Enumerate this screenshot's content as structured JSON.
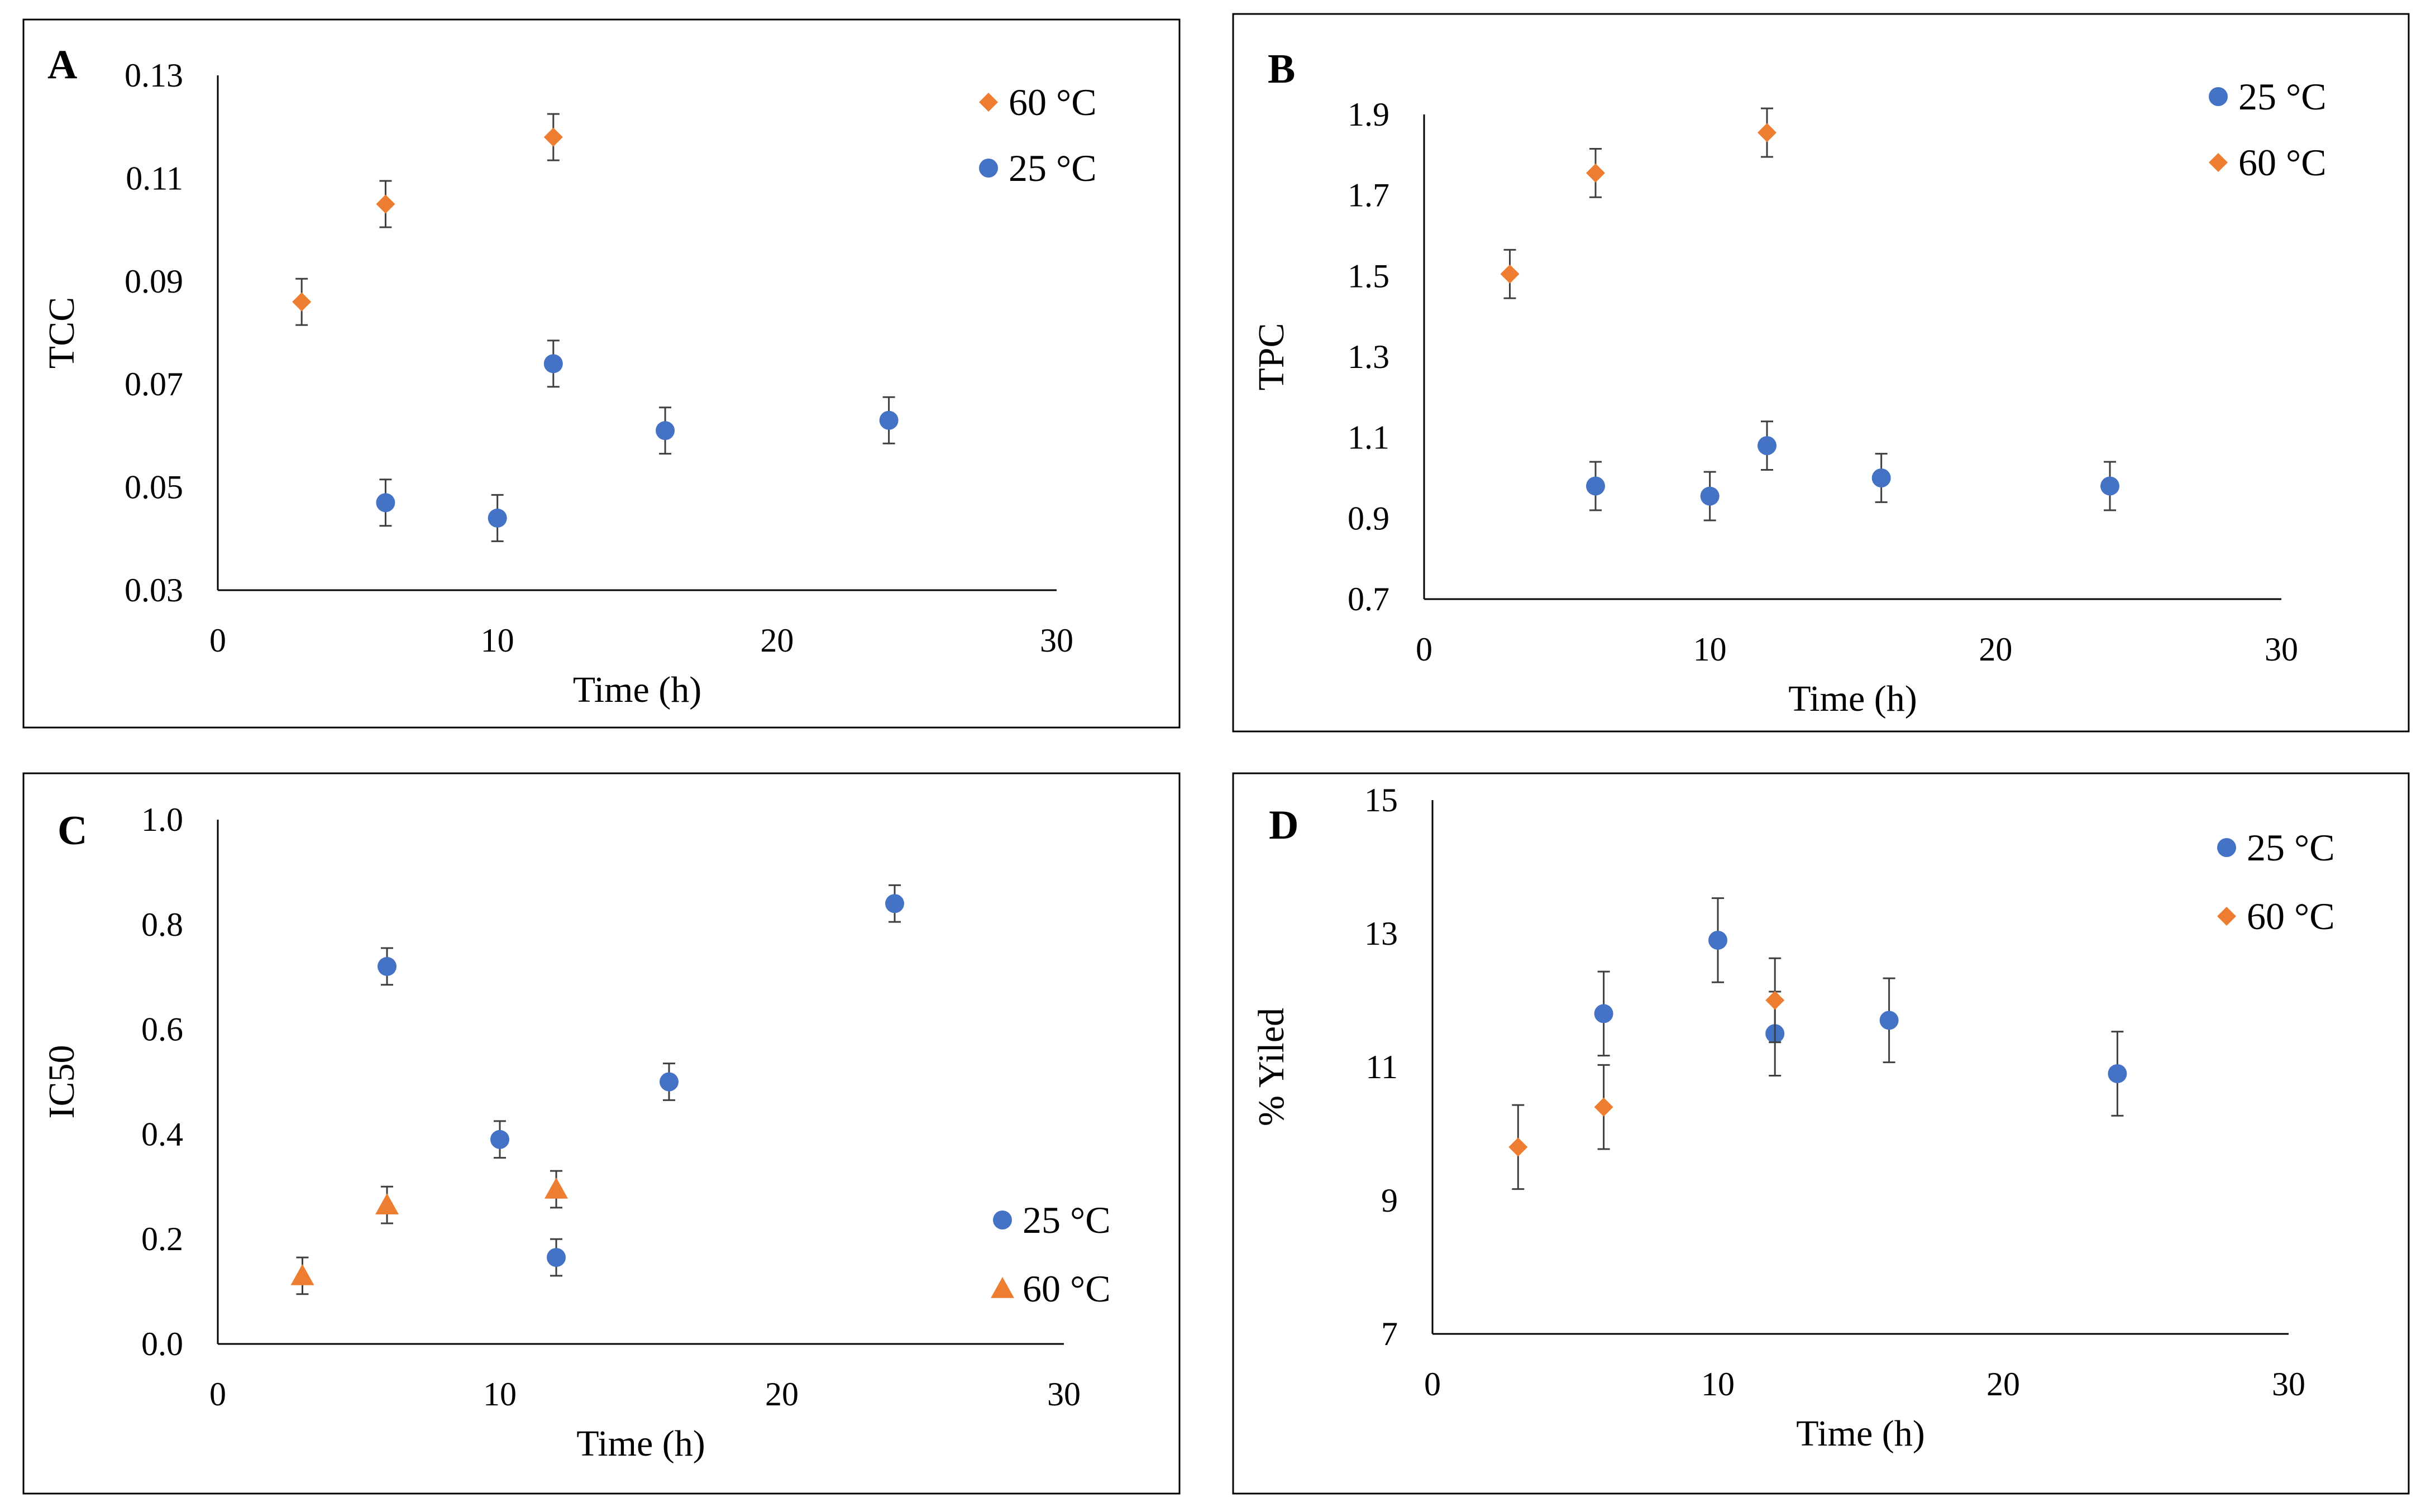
{
  "colors": {
    "c25": "#4472C4",
    "c60": "#ED7D31",
    "axis": "#000000",
    "errorbar": "#3F3F3F"
  },
  "chart_data": [
    {
      "id": "A",
      "type": "scatter",
      "panel_label": "A",
      "title": "",
      "xlabel": "Time (h)",
      "ylabel": "TCC",
      "xlim": [
        0,
        30
      ],
      "ylim": [
        0.03,
        0.13
      ],
      "xticks": [
        0,
        10,
        20,
        30
      ],
      "xtick_labels": [
        "0",
        "10",
        "20",
        "30"
      ],
      "yticks": [
        0.03,
        0.05,
        0.07,
        0.09,
        0.11,
        0.13
      ],
      "ytick_labels": [
        "0.03",
        "0.05",
        "0.07",
        "0.09",
        "0.11",
        "0.13"
      ],
      "legend": [
        "60 °C",
        "25 °C"
      ],
      "series": [
        {
          "name": "25 °C",
          "marker": "circle",
          "color": "#4472C4",
          "x": [
            6,
            10,
            12,
            16,
            24
          ],
          "y": [
            0.047,
            0.044,
            0.074,
            0.061,
            0.063
          ],
          "err": [
            0.0045,
            0.0045,
            0.0045,
            0.0045,
            0.0045
          ]
        },
        {
          "name": "60 °C",
          "marker": "diamond",
          "color": "#ED7D31",
          "x": [
            3,
            6,
            12
          ],
          "y": [
            0.086,
            0.105,
            0.118
          ],
          "err": [
            0.0045,
            0.0045,
            0.0045
          ]
        }
      ]
    },
    {
      "id": "B",
      "type": "scatter",
      "panel_label": "B",
      "title": "",
      "xlabel": "Time (h)",
      "ylabel": "TPC",
      "xlim": [
        0,
        30
      ],
      "ylim": [
        0.7,
        1.9
      ],
      "xticks": [
        0,
        10,
        20,
        30
      ],
      "xtick_labels": [
        "0",
        "10",
        "20",
        "30"
      ],
      "yticks": [
        0.7,
        0.9,
        1.1,
        1.3,
        1.5,
        1.7,
        1.9
      ],
      "ytick_labels": [
        "0.7",
        "0.9",
        "1.1",
        "1.3",
        "1.5",
        "1.7",
        "1.9"
      ],
      "legend": [
        "25 °C",
        "60 °C"
      ],
      "series": [
        {
          "name": "25 °C",
          "marker": "circle",
          "color": "#4472C4",
          "x": [
            6,
            10,
            12,
            16,
            24
          ],
          "y": [
            0.98,
            0.955,
            1.08,
            1.0,
            0.98
          ],
          "err": [
            0.06,
            0.06,
            0.06,
            0.06,
            0.06
          ]
        },
        {
          "name": "60 °C",
          "marker": "diamond",
          "color": "#ED7D31",
          "x": [
            3,
            6,
            12
          ],
          "y": [
            1.505,
            1.755,
            1.855
          ],
          "err": [
            0.06,
            0.06,
            0.06
          ]
        }
      ]
    },
    {
      "id": "C",
      "type": "scatter",
      "panel_label": "C",
      "title": "",
      "xlabel": "Time (h)",
      "ylabel": "IC50",
      "xlim": [
        0,
        30
      ],
      "ylim": [
        0.0,
        1.0
      ],
      "xticks": [
        0,
        10,
        20,
        30
      ],
      "xtick_labels": [
        "0",
        "10",
        "20",
        "30"
      ],
      "yticks": [
        0.0,
        0.2,
        0.4,
        0.6,
        0.8,
        1.0
      ],
      "ytick_labels": [
        "0.0",
        "0.2",
        "0.4",
        "0.6",
        "0.8",
        "1.0"
      ],
      "legend": [
        "25 °C",
        "60 °C"
      ],
      "series": [
        {
          "name": "25 °C",
          "marker": "circle",
          "color": "#4472C4",
          "x": [
            6,
            10,
            12,
            16,
            24
          ],
          "y": [
            0.72,
            0.39,
            0.165,
            0.5,
            0.84
          ],
          "err": [
            0.035,
            0.035,
            0.035,
            0.035,
            0.035
          ]
        },
        {
          "name": "60 °C",
          "marker": "triangle",
          "color": "#ED7D31",
          "x": [
            3,
            6,
            12
          ],
          "y": [
            0.13,
            0.265,
            0.295
          ],
          "err": [
            0.035,
            0.035,
            0.035
          ]
        }
      ]
    },
    {
      "id": "D",
      "type": "scatter",
      "panel_label": "D",
      "title": "",
      "xlabel": "Time (h)",
      "ylabel": "% Yiled",
      "xlim": [
        0,
        30
      ],
      "ylim": [
        7,
        15
      ],
      "xticks": [
        0,
        10,
        20,
        30
      ],
      "xtick_labels": [
        "0",
        "10",
        "20",
        "30"
      ],
      "yticks": [
        7,
        9,
        11,
        13,
        15
      ],
      "ytick_labels": [
        "7",
        "9",
        "11",
        "13",
        "15"
      ],
      "legend": [
        "25 °C",
        "60 °C"
      ],
      "series": [
        {
          "name": "25 °C",
          "marker": "circle",
          "color": "#4472C4",
          "x": [
            6,
            10,
            12,
            16,
            24
          ],
          "y": [
            11.8,
            12.9,
            11.5,
            11.7,
            10.9
          ],
          "err": [
            0.63,
            0.63,
            0.63,
            0.63,
            0.63
          ]
        },
        {
          "name": "60 °C",
          "marker": "diamond",
          "color": "#ED7D31",
          "x": [
            3,
            6,
            12
          ],
          "y": [
            9.8,
            10.4,
            12.0
          ],
          "err": [
            0.63,
            0.63,
            0.63
          ]
        }
      ]
    }
  ]
}
